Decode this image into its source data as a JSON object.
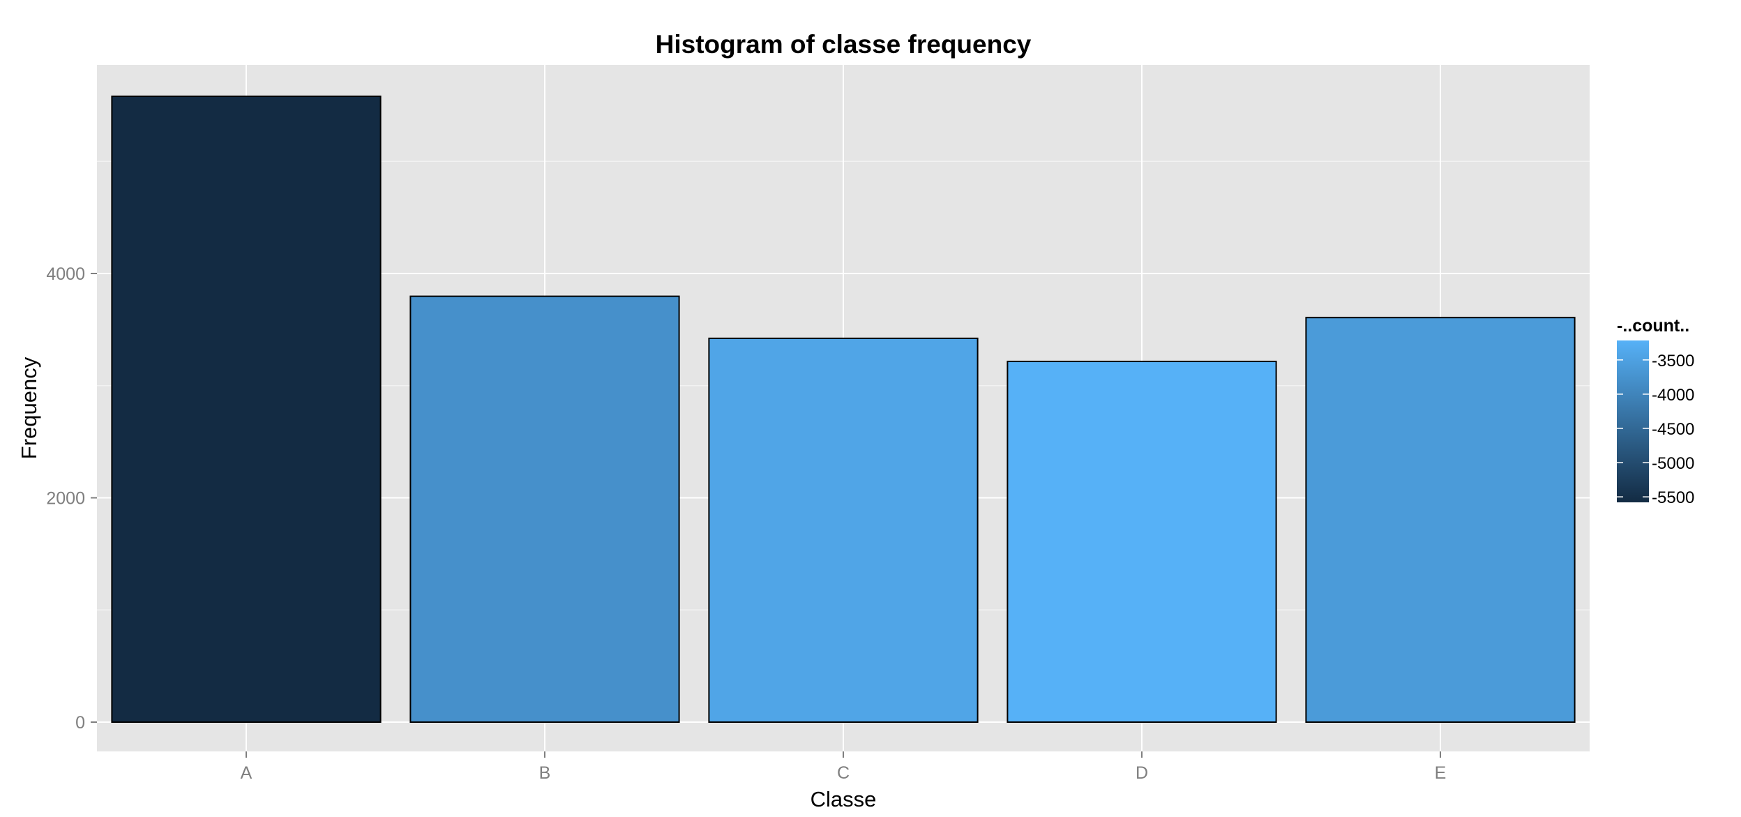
{
  "chart_data": {
    "type": "bar",
    "title": "Histogram of classe frequency",
    "xlabel": "Classe",
    "ylabel": "Frequency",
    "categories": [
      "A",
      "B",
      "C",
      "D",
      "E"
    ],
    "values": [
      5580,
      3797,
      3422,
      3216,
      3607
    ],
    "ylim": [
      0,
      5860
    ],
    "y_ticks": [
      0,
      2000,
      4000
    ],
    "y_tick_labels": [
      "0",
      "2000",
      "4000"
    ],
    "grid": true,
    "legend": {
      "title": "-..count..",
      "placement": "right",
      "ticks": [
        -3500,
        -4000,
        -4500,
        -5000,
        -5500
      ],
      "tick_labels": [
        "-3500",
        "-4000",
        "-4500",
        "-5000",
        "-5500"
      ],
      "range": [
        -5580,
        -3216
      ],
      "color_low": "#132B43",
      "color_high": "#56B1F7"
    },
    "colors": {
      "panel_background": "#e5e5e5",
      "grid_major": "#ffffff",
      "grid_minor": "#f2f2f2",
      "bar_outline": "#000000"
    }
  }
}
